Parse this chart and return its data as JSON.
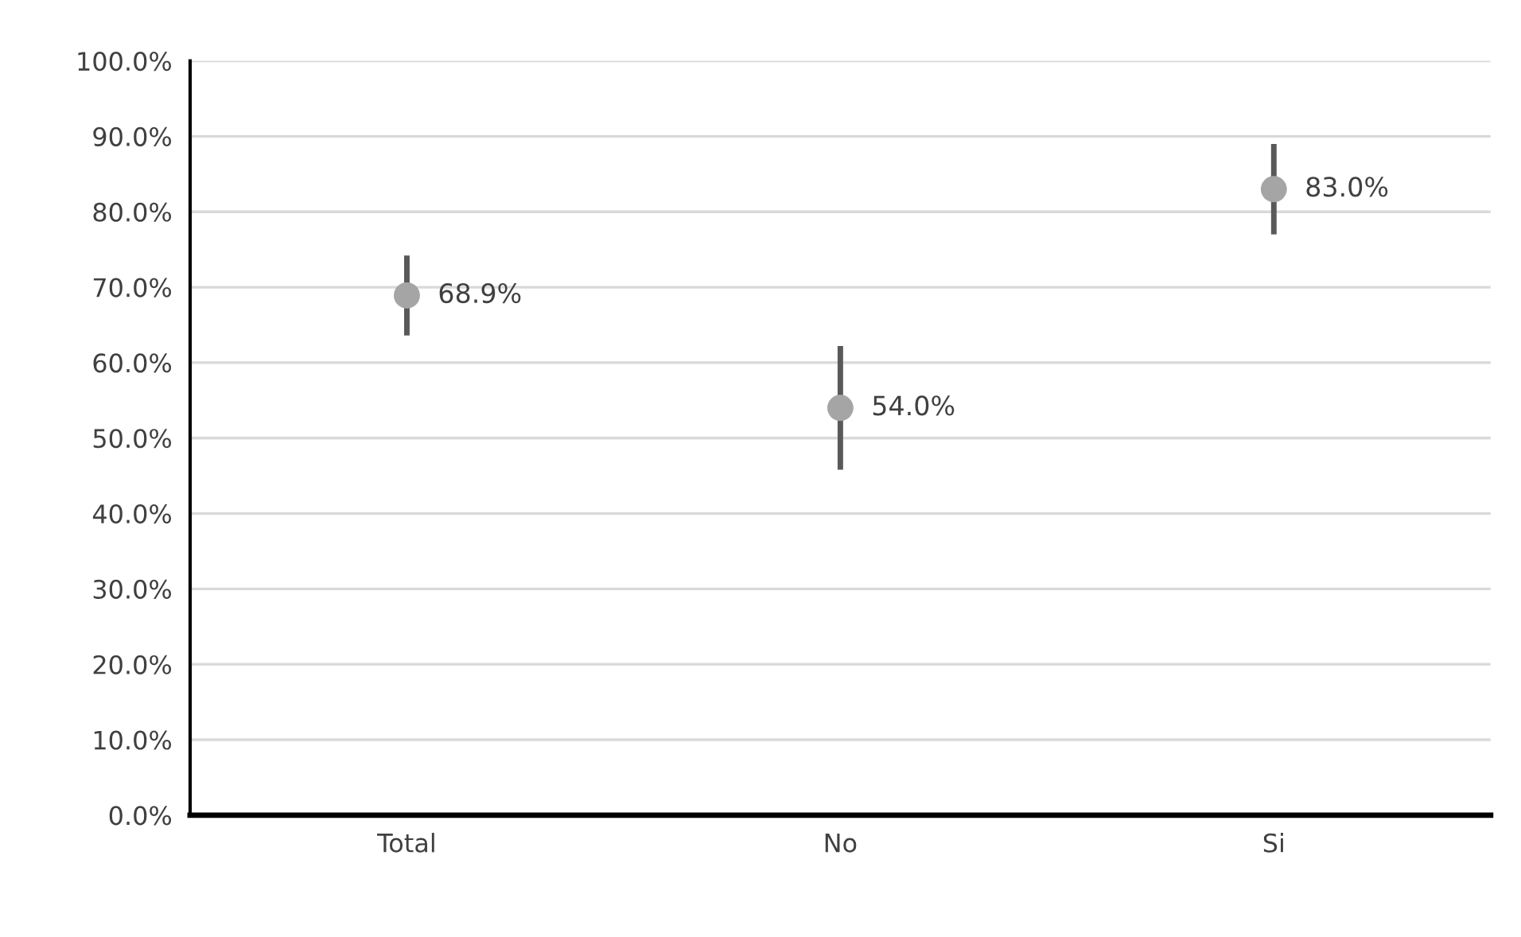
{
  "chart_data": {
    "type": "scatter",
    "categories": [
      "Total",
      "No",
      "Si"
    ],
    "series": [
      {
        "color": "#a5a5a5",
        "values": [
          68.9,
          54.0,
          83.0
        ],
        "errors": [
          5.3,
          8.2,
          6.0
        ],
        "value_labels": [
          "68.9%",
          "54.0%",
          "83.0%"
        ]
      }
    ],
    "ylim": [
      0,
      100
    ],
    "yticks": [
      {
        "value": 0,
        "label": "0.0%"
      },
      {
        "value": 10,
        "label": "10.0%"
      },
      {
        "value": 20,
        "label": "20.0%"
      },
      {
        "value": 30,
        "label": "30.0%"
      },
      {
        "value": 40,
        "label": "40.0%"
      },
      {
        "value": 50,
        "label": "50.0%"
      },
      {
        "value": 60,
        "label": "60.0%"
      },
      {
        "value": 70,
        "label": "70.0%"
      },
      {
        "value": 80,
        "label": "80.0%"
      },
      {
        "value": 90,
        "label": "90.0%"
      },
      {
        "value": 100,
        "label": "100.0%"
      }
    ],
    "grid": "y",
    "marker": "circle",
    "legend": false
  }
}
